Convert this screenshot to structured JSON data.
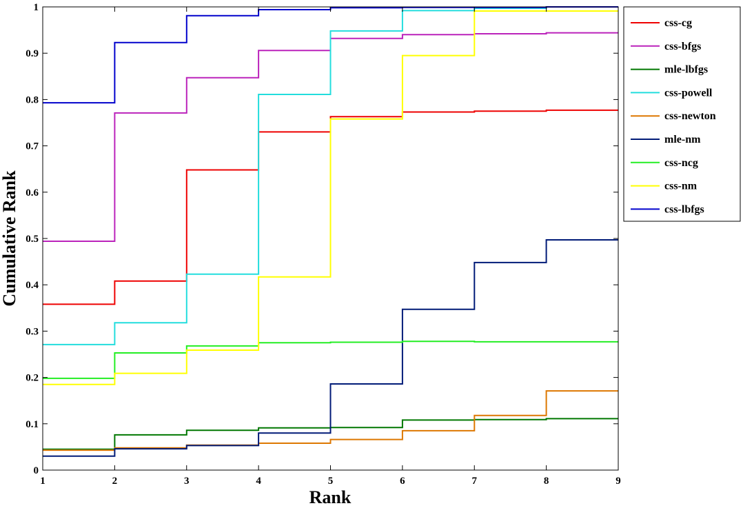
{
  "chart_data": {
    "type": "line",
    "step": true,
    "title": "",
    "xlabel": "Rank",
    "ylabel": "Cumulative Rank",
    "xlim": [
      1,
      9
    ],
    "ylim": [
      0,
      1
    ],
    "xticks": [
      "1",
      "2",
      "3",
      "4",
      "5",
      "6",
      "7",
      "8",
      "9"
    ],
    "yticks": [
      "0",
      "0.1",
      "0.2",
      "0.3",
      "0.4",
      "0.5",
      "0.6",
      "0.7",
      "0.8",
      "0.9",
      "1"
    ],
    "grid": false,
    "legend_position": "outside-top-right",
    "x": [
      1,
      2,
      3,
      4,
      5,
      6,
      7,
      8
    ],
    "series": [
      {
        "name": "css-cg",
        "color": "#ee0000",
        "values": [
          0.358,
          0.408,
          0.648,
          0.73,
          0.763,
          0.773,
          0.775,
          0.777
        ]
      },
      {
        "name": "css-bfgs",
        "color": "#bb22bb",
        "values": [
          0.494,
          0.771,
          0.847,
          0.906,
          0.932,
          0.94,
          0.942,
          0.944
        ]
      },
      {
        "name": "mle-lbfgs",
        "color": "#007700",
        "values": [
          0.045,
          0.076,
          0.086,
          0.091,
          0.092,
          0.108,
          0.109,
          0.111
        ]
      },
      {
        "name": "css-powell",
        "color": "#22dddd",
        "values": [
          0.271,
          0.318,
          0.423,
          0.811,
          0.948,
          0.992,
          0.997,
          1.0
        ]
      },
      {
        "name": "css-newton",
        "color": "#dd7700",
        "values": [
          0.043,
          0.048,
          0.054,
          0.058,
          0.066,
          0.085,
          0.118,
          0.171
        ]
      },
      {
        "name": "mle-nm",
        "color": "#001a77",
        "values": [
          0.03,
          0.046,
          0.053,
          0.08,
          0.186,
          0.347,
          0.448,
          0.497
        ]
      },
      {
        "name": "css-ncg",
        "color": "#22ee22",
        "values": [
          0.198,
          0.253,
          0.268,
          0.275,
          0.276,
          0.278,
          0.277,
          0.277
        ]
      },
      {
        "name": "css-nm",
        "color": "#ffff00",
        "values": [
          0.185,
          0.209,
          0.259,
          0.417,
          0.758,
          0.895,
          0.991,
          0.991
        ]
      },
      {
        "name": "css-lbfgs",
        "color": "#0000cc",
        "values": [
          0.793,
          0.923,
          0.981,
          0.994,
          0.998,
          0.999,
          0.999,
          1.0
        ]
      }
    ]
  }
}
